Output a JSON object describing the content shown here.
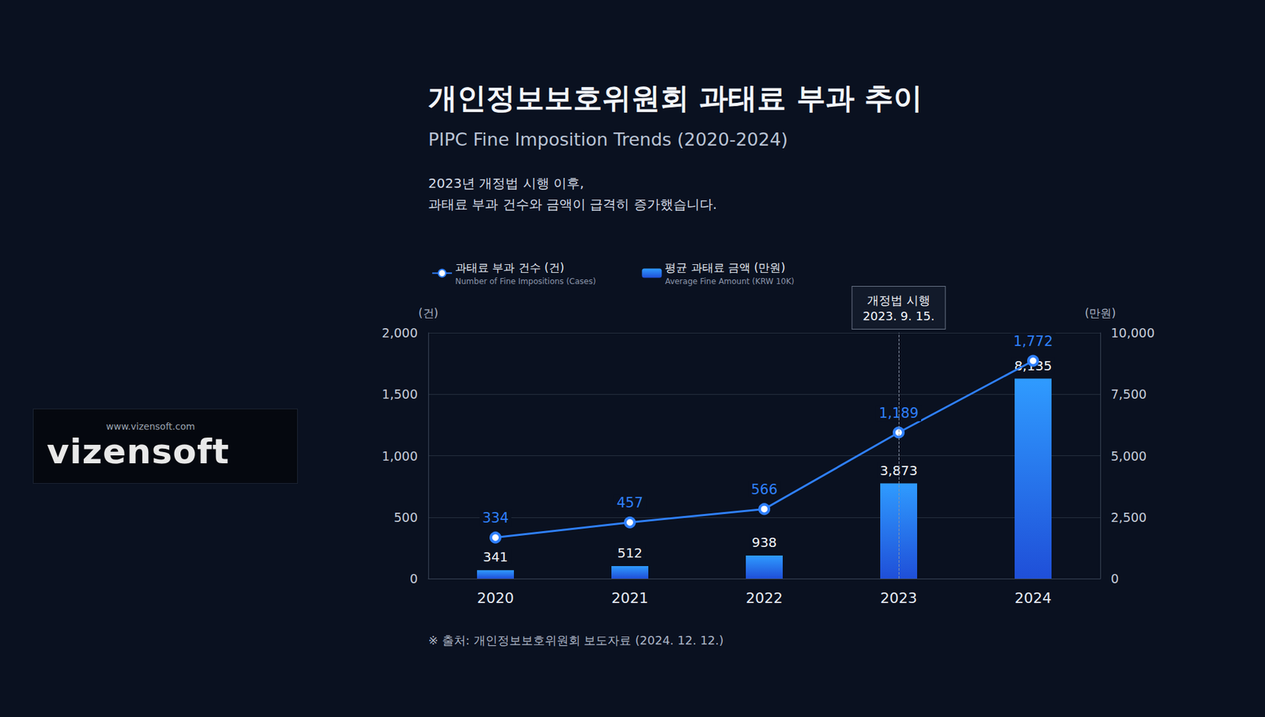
{
  "chart_data": {
    "type": "bar_line",
    "title": "개인정보보호위원회 과태료 부과 추이",
    "subtitle": "PIPC Fine Imposition Trends (2020-2024)",
    "description": [
      "2023년 개정법 시행 이후,",
      "과태료 부과 건수와 금액이 급격히 증가했습니다."
    ],
    "source": "※ 출처: 개인정보보호위원회 보도자료 (2024. 12. 12.)",
    "brand": "vizensoft",
    "brand_url": "www.vizensoft.com",
    "annotation": {
      "label": "개정법 시행",
      "date": "2023. 9. 15.",
      "category": "2023"
    },
    "categories": [
      "2020",
      "2021",
      "2022",
      "2023",
      "2024"
    ],
    "y_label": "(건)",
    "y2_label": "(만원)",
    "ylim": [
      0,
      2000
    ],
    "yticks": [
      0,
      500,
      {
        "value": 1000,
        "label": "1,000"
      },
      {
        "value": 1500,
        "label": "1,500"
      },
      {
        "value": 2000,
        "label": "2,000"
      }
    ],
    "y2lim": [
      0,
      10000
    ],
    "y2ticks": [
      0,
      {
        "value": 2500,
        "label": "2,500"
      },
      {
        "value": 5000,
        "label": "5,000"
      },
      {
        "value": 7500,
        "label": "7,500"
      },
      {
        "value": 10000,
        "label": "10,000"
      }
    ],
    "series": [
      {
        "name": "과태료 부과 건수 (건)",
        "subtitle": "Number of Fine Impositions (Cases)",
        "type": "line",
        "marker": "circle",
        "color": "#2f80ff",
        "values": [
          334,
          457,
          566,
          1189,
          1772
        ],
        "value_labels": [
          "334",
          "457",
          "566",
          "1,189",
          "1,772"
        ]
      },
      {
        "name": "평균 과태료 금액 (만원)",
        "subtitle": "Average Fine Amount (KRW 10K)",
        "type": "bar",
        "axis": "y2",
        "color": "#2f9bff",
        "values": [
          341,
          512,
          938,
          3873,
          8135
        ],
        "value_labels": [
          "341",
          "512",
          "938",
          "3,873",
          "8,135"
        ]
      }
    ],
    "data_labels": true,
    "grid": true,
    "legend": "top-left"
  }
}
